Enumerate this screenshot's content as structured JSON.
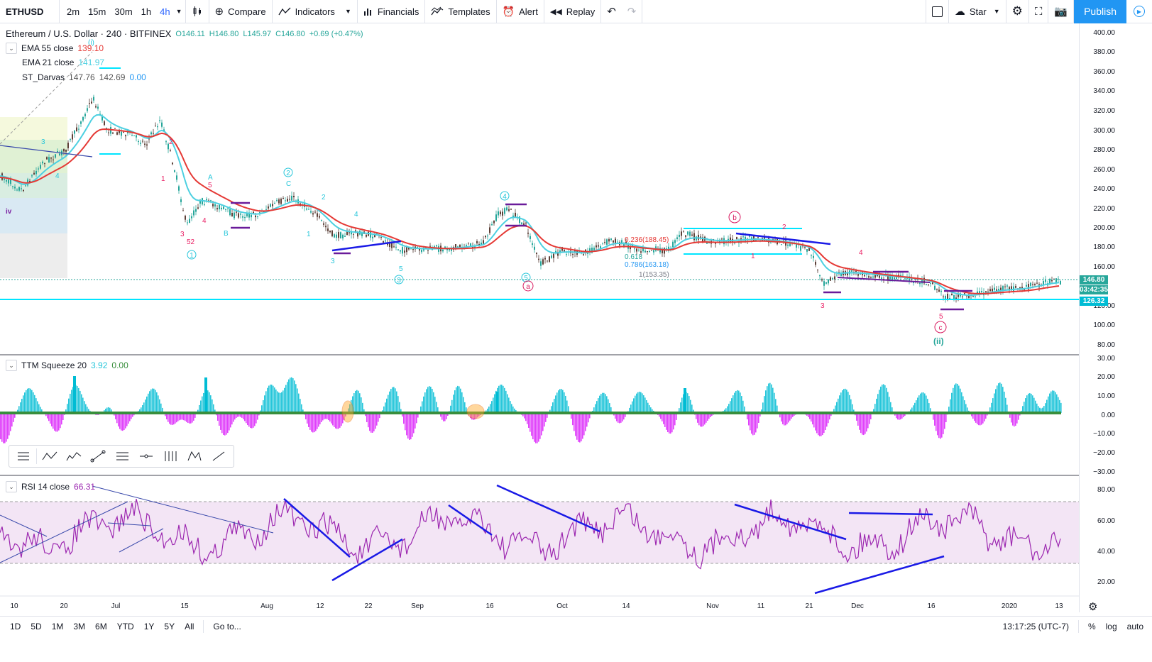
{
  "topbar": {
    "symbol": "ETHUSD",
    "timeframes": [
      "2m",
      "15m",
      "30m",
      "1h",
      "4h"
    ],
    "active_timeframe": "4h",
    "compare": "Compare",
    "indicators": "Indicators",
    "financials": "Financials",
    "templates": "Templates",
    "alert": "Alert",
    "replay": "Replay",
    "star": "Star",
    "publish": "Publish"
  },
  "main_pane": {
    "title": "Ethereum / U.S. Dollar · 240 · BITFINEX",
    "ohlc": {
      "o": "O146.11",
      "h": "H146.80",
      "l": "L145.97",
      "c": "C146.80",
      "chg": "+0.69 (+0.47%)"
    },
    "ema55": {
      "label": "EMA 55 close",
      "value": "139.10"
    },
    "ema21": {
      "label": "EMA 21 close",
      "value": "141.97"
    },
    "darvas": {
      "label": "ST_Darvas",
      "v1": "147.76",
      "v2": "142.69",
      "v3": "0.00"
    },
    "price_ticks": [
      "400.00",
      "380.00",
      "360.00",
      "340.00",
      "320.00",
      "300.00",
      "280.00",
      "260.00",
      "240.00",
      "220.00",
      "200.00",
      "180.00",
      "160.00",
      "146.80",
      "03:42:35",
      "126.32",
      "120.00",
      "100.00",
      "80.00"
    ],
    "last_price": "146.80",
    "countdown": "03:42:35",
    "hline_price": "126.32",
    "fib_labels": [
      "0.236(188.45)",
      "0.618",
      "0.786(163.18)",
      "1(153.35)"
    ],
    "wave_labels": [
      "iv",
      "(i)",
      "1",
      "2",
      "3",
      "4",
      "5",
      "A",
      "B",
      "C",
      "52",
      "3",
      "4",
      "1",
      "2",
      "3",
      "4",
      "5",
      "1",
      "2",
      "3",
      "4",
      "5",
      "a",
      "b",
      "c",
      "(ii)",
      "1",
      "2",
      "3",
      "4",
      "5",
      "1",
      "3",
      "4",
      "5"
    ]
  },
  "squeeze_pane": {
    "label": "TTM Squeeze 20",
    "v1": "3.92",
    "v2": "0.00",
    "ticks": [
      "30.00",
      "20.00",
      "10.00",
      "0.00",
      "−10.00",
      "−20.00",
      "−30.00"
    ]
  },
  "rsi_pane": {
    "label": "RSI 14 close",
    "value": "66.31",
    "ticks": [
      "80.00",
      "60.00",
      "40.00",
      "20.00"
    ]
  },
  "time_axis": [
    "10",
    "20",
    "Jul",
    "15",
    "Aug",
    "12",
    "22",
    "Sep",
    "16",
    "Oct",
    "14",
    "Nov",
    "11",
    "21",
    "Dec",
    "16",
    "2020",
    "13"
  ],
  "bottombar": {
    "ranges": [
      "1D",
      "5D",
      "1M",
      "3M",
      "6M",
      "YTD",
      "1Y",
      "5Y",
      "All"
    ],
    "goto": "Go to...",
    "clock": "13:17:25 (UTC-7)",
    "pct": "%",
    "log": "log",
    "auto": "auto"
  },
  "colors": {
    "ema55": "#e53935",
    "ema21": "#4dd0e1",
    "accent": "#2196f3",
    "squeeze_pos": "#26c6da",
    "squeeze_neg": "#e040fb",
    "rsi": "#9c27b0",
    "trend": "#1a1ae6"
  },
  "icons": [
    "candles-icon",
    "compare-icon",
    "indicators-icon",
    "financials-icon",
    "templates-icon",
    "alert-icon",
    "replay-icon",
    "undo-icon",
    "redo-icon",
    "layout-icon",
    "cloud-icon",
    "settings-icon",
    "fullscreen-icon",
    "camera-icon",
    "play-icon"
  ]
}
